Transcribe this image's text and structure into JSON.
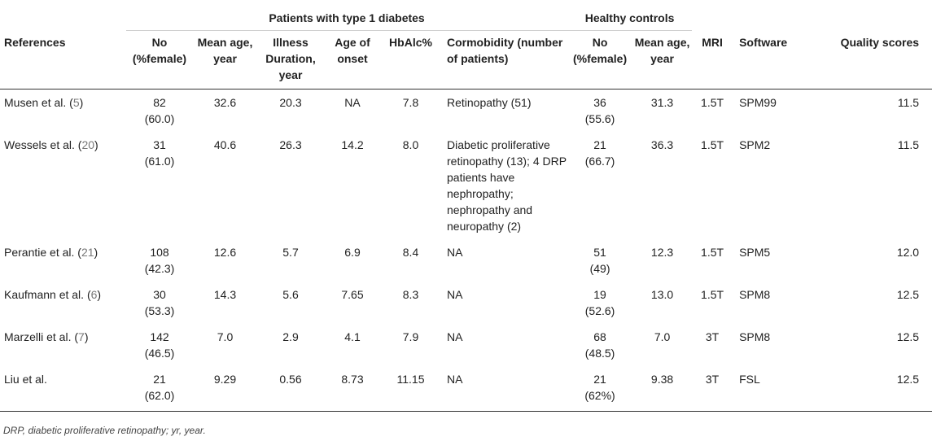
{
  "table": {
    "group_headers": {
      "patients": "Patients with type 1 diabetes",
      "controls": "Healthy controls"
    },
    "columns": {
      "references": "References",
      "t1_no": "No (%female)",
      "t1_mean_age": "Mean age, year",
      "illness_duration": "Illness Duration, year",
      "age_of_onset": "Age of onset",
      "hba1c": "HbAlc%",
      "cormobidity": "Cormobidity (number of patients)",
      "hc_no": "No (%female)",
      "hc_mean_age": "Mean age, year",
      "mri": "MRI",
      "software": "Software",
      "quality": "Quality scores"
    },
    "rows": [
      {
        "author": "Musen et al. (",
        "ref": "5",
        "close": ")",
        "t1_no": "82",
        "t1_pct": "(60.0)",
        "t1_age": "32.6",
        "duration": "20.3",
        "onset": "NA",
        "hba1c": "7.8",
        "cormobidity": "Retinopathy (51)",
        "hc_no": "36",
        "hc_pct": "(55.6)",
        "hc_age": "31.3",
        "mri": "1.5T",
        "software": "SPM99",
        "quality": "11.5"
      },
      {
        "author": "Wessels et al. (",
        "ref": "20",
        "close": ")",
        "t1_no": "31",
        "t1_pct": "(61.0)",
        "t1_age": "40.6",
        "duration": "26.3",
        "onset": "14.2",
        "hba1c": "8.0",
        "cormobidity": "Diabetic proliferative retinopathy (13); 4 DRP patients have nephropathy; nephropathy and neuropathy (2)",
        "hc_no": "21",
        "hc_pct": "(66.7)",
        "hc_age": "36.3",
        "mri": "1.5T",
        "software": "SPM2",
        "quality": "11.5"
      },
      {
        "author": "Perantie et al. (",
        "ref": "21",
        "close": ")",
        "t1_no": "108",
        "t1_pct": "(42.3)",
        "t1_age": "12.6",
        "duration": "5.7",
        "onset": "6.9",
        "hba1c": "8.4",
        "cormobidity": "NA",
        "hc_no": "51",
        "hc_pct": "(49)",
        "hc_age": "12.3",
        "mri": "1.5T",
        "software": "SPM5",
        "quality": "12.0"
      },
      {
        "author": "Kaufmann et al. (",
        "ref": "6",
        "close": ")",
        "t1_no": "30",
        "t1_pct": "(53.3)",
        "t1_age": "14.3",
        "duration": "5.6",
        "onset": "7.65",
        "hba1c": "8.3",
        "cormobidity": "NA",
        "hc_no": "19",
        "hc_pct": "(52.6)",
        "hc_age": "13.0",
        "mri": "1.5T",
        "software": "SPM8",
        "quality": "12.5"
      },
      {
        "author": "Marzelli et al. (",
        "ref": "7",
        "close": ")",
        "t1_no": "142",
        "t1_pct": "(46.5)",
        "t1_age": "7.0",
        "duration": "2.9",
        "onset": "4.1",
        "hba1c": "7.9",
        "cormobidity": "NA",
        "hc_no": "68",
        "hc_pct": "(48.5)",
        "hc_age": "7.0",
        "mri": "3T",
        "software": "SPM8",
        "quality": "12.5"
      },
      {
        "author": "Liu et al.",
        "ref": "",
        "close": "",
        "t1_no": "21",
        "t1_pct": "(62.0)",
        "t1_age": "9.29",
        "duration": "0.56",
        "onset": "8.73",
        "hba1c": "11.15",
        "cormobidity": "NA",
        "hc_no": "21",
        "hc_pct": "(62%)",
        "hc_age": "9.38",
        "mri": "3T",
        "software": "FSL",
        "quality": "12.5"
      }
    ],
    "footnote": "DRP, diabetic proliferative retinopathy; yr, year."
  }
}
